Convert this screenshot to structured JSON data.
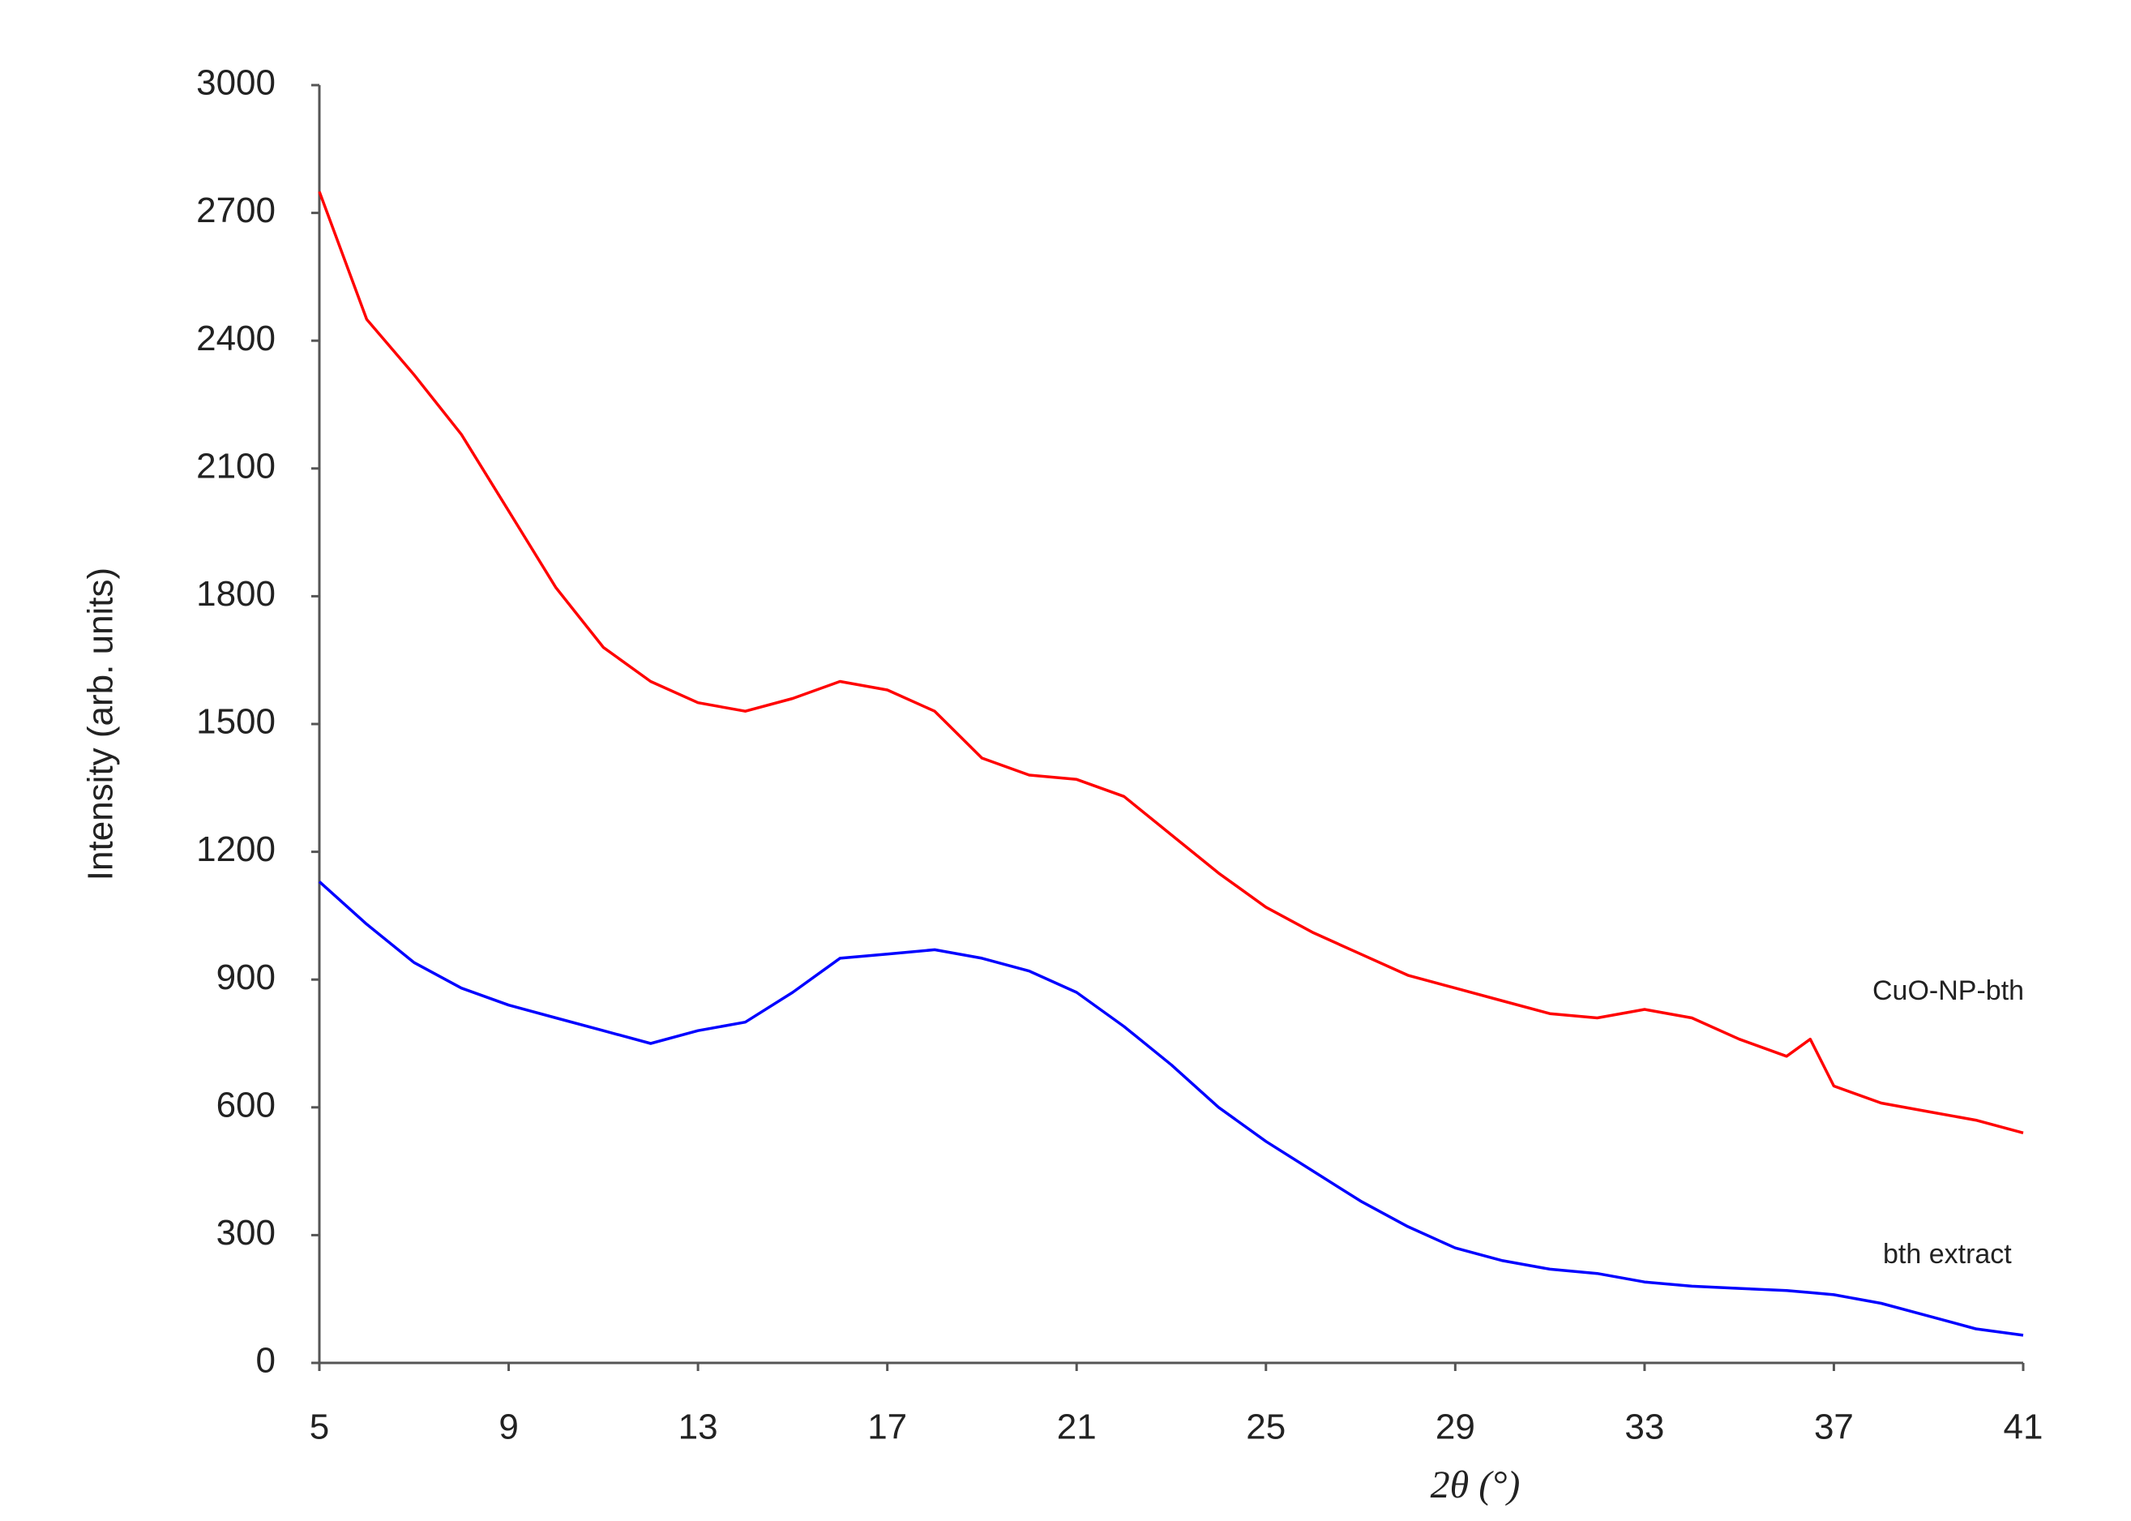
{
  "chart_data": {
    "type": "line",
    "x_label": "2θ (°)",
    "y_label": "Intensity (arb. units)",
    "x": [
      5,
      6,
      7,
      8,
      9,
      10,
      11,
      12,
      13,
      14,
      15,
      16,
      17,
      18,
      19,
      20,
      21,
      22,
      23,
      24,
      25,
      26,
      27,
      28,
      29,
      30,
      31,
      32,
      33,
      34,
      35,
      36,
      36.5,
      37,
      38,
      39,
      40,
      41
    ],
    "series": [
      {
        "name": "CuO-NP-bth",
        "color": "#ff0000",
        "values": [
          2750,
          2450,
          2320,
          2180,
          2000,
          1820,
          1680,
          1600,
          1550,
          1530,
          1560,
          1600,
          1580,
          1530,
          1420,
          1380,
          1370,
          1330,
          1240,
          1150,
          1070,
          1010,
          960,
          910,
          880,
          850,
          820,
          810,
          830,
          810,
          760,
          720,
          760,
          650,
          610,
          590,
          570,
          540
        ]
      },
      {
        "name": "bth extract",
        "color": "#0000ff",
        "values": [
          1130,
          1030,
          940,
          880,
          840,
          810,
          780,
          750,
          780,
          800,
          870,
          950,
          960,
          970,
          950,
          920,
          870,
          790,
          700,
          600,
          520,
          450,
          380,
          320,
          270,
          240,
          220,
          210,
          190,
          180,
          175,
          170,
          165,
          160,
          140,
          110,
          80,
          65
        ]
      }
    ],
    "xlim": [
      5,
      41
    ],
    "xticks": [
      5,
      9,
      13,
      17,
      21,
      25,
      29,
      33,
      37,
      41
    ],
    "ylim": [
      0,
      3000
    ],
    "yticks": [
      0,
      300,
      600,
      900,
      1200,
      1500,
      1800,
      2100,
      2400,
      2700,
      3000
    ]
  }
}
